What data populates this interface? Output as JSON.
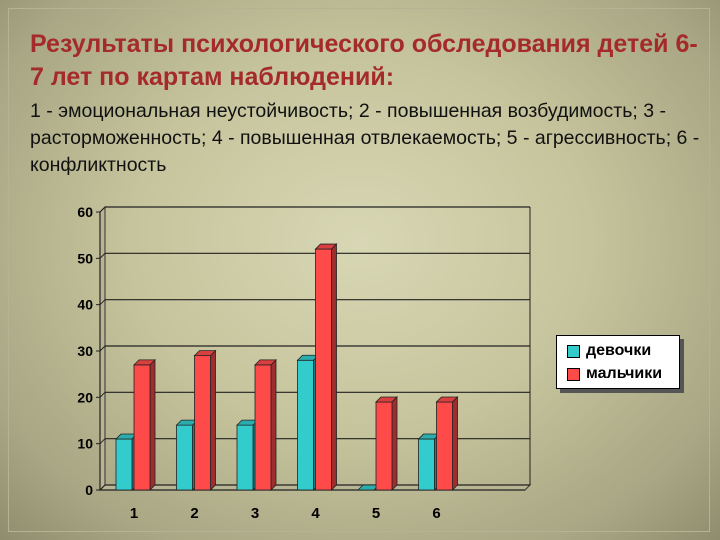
{
  "slide": {
    "title": "Результаты психологического обследования детей 6-7 лет по картам наблюдений:",
    "subtitle": "1 - эмоциональная неустойчивость; 2 - повышенная возбудимость; 3 - расторможенность; 4 - повышенная отвлекаемость; 5 - агрессивность;  6 - конфликтность"
  },
  "chart_data": {
    "type": "bar",
    "categories": [
      "1",
      "2",
      "3",
      "4",
      "5",
      "6"
    ],
    "series": [
      {
        "name": "девочки",
        "values": [
          11,
          14,
          14,
          28,
          0,
          11
        ],
        "color": "#33cccc"
      },
      {
        "name": "мальчики",
        "values": [
          27,
          29,
          27,
          52,
          19,
          19
        ],
        "color": "#ff4a4a"
      }
    ],
    "ylim": [
      0,
      60
    ],
    "yticks": [
      0,
      10,
      20,
      30,
      40,
      50,
      60
    ],
    "grid": true,
    "legend_position": "right",
    "style": "3d-column"
  }
}
